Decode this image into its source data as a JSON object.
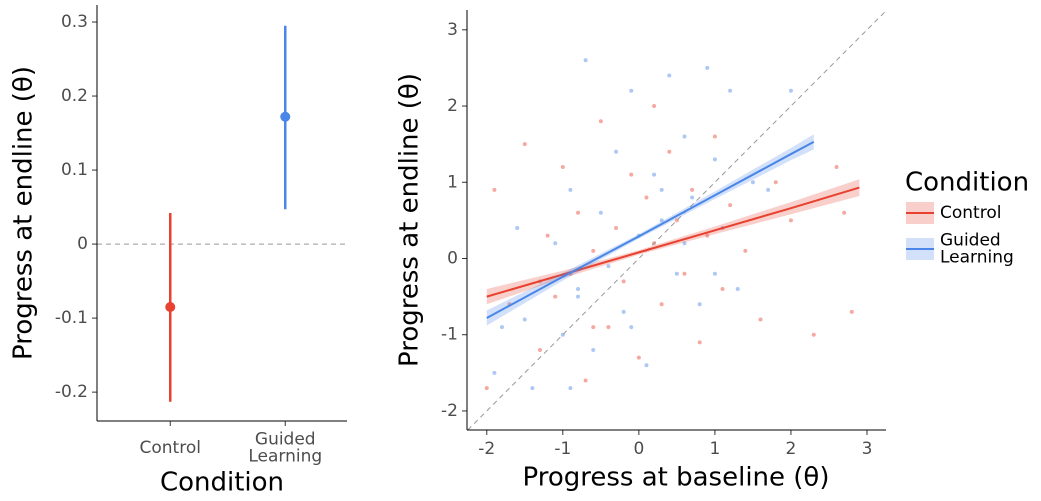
{
  "chart_data": [
    {
      "type": "pointrange",
      "xlabel": "Condition",
      "ylabel": "Progress at endline (θ)",
      "categories": [
        "Control",
        "Guided Learning"
      ],
      "values": [
        -0.085,
        0.172
      ],
      "lower": [
        -0.213,
        0.047
      ],
      "upper": [
        0.042,
        0.295
      ],
      "colors": [
        "#e8412f",
        "#4a86e8"
      ],
      "ylim": [
        -0.239,
        0.323
      ],
      "yticks": [
        -0.2,
        -0.1,
        0,
        0.1,
        0.2,
        0.3
      ],
      "hline": 0
    },
    {
      "type": "scatter",
      "xlabel": "Progress at baseline (θ)",
      "ylabel": "Progress at endline (θ)",
      "legend_title": "Condition",
      "legend": "right",
      "xlim": [
        -2.26,
        3.25
      ],
      "ylim": [
        -2.25,
        3.26
      ],
      "xticks": [
        -2,
        -1,
        0,
        1,
        2,
        3
      ],
      "yticks": [
        -2,
        -1,
        0,
        1,
        2,
        3
      ],
      "diagonal": true,
      "series": [
        {
          "name": "Control",
          "color": "#e8412f",
          "x": [
            -2,
            -1.9,
            -1.7,
            -1.5,
            -1.3,
            -1.2,
            -1.1,
            -1,
            -0.9,
            -0.8,
            -0.7,
            -0.6,
            -0.5,
            -0.4,
            -0.3,
            -0.2,
            -0.1,
            0,
            0.1,
            0.2,
            0.3,
            0.4,
            0.5,
            0.6,
            0.7,
            0.8,
            0.9,
            1,
            1.1,
            1.2,
            1.4,
            1.6,
            1.8,
            2,
            2.3,
            2.6,
            2.7,
            2.8,
            -0.6,
            0.2
          ],
          "values": [
            -1.7,
            0.9,
            -0.6,
            1.5,
            -1.2,
            0.3,
            -0.5,
            1.2,
            -0.2,
            0.6,
            -1.6,
            0.1,
            1.8,
            -0.9,
            0.4,
            -0.3,
            1.1,
            -1.3,
            0.8,
            0.2,
            -0.6,
            1.4,
            0.5,
            -0.2,
            0.9,
            -1.1,
            0.3,
            1.6,
            -0.4,
            0.7,
            0.1,
            -0.8,
            1.0,
            0.5,
            -1.0,
            1.2,
            0.6,
            -0.7,
            -0.9,
            2.0
          ],
          "fit": {
            "x": [
              -2,
              -1,
              0,
              1,
              2,
              2.9
            ],
            "values": [
              -0.5,
              -0.21,
              0.08,
              0.37,
              0.66,
              0.93
            ],
            "lower": [
              -0.6,
              -0.26,
              0.05,
              0.32,
              0.58,
              0.82
            ],
            "upper": [
              -0.4,
              -0.16,
              0.11,
              0.42,
              0.74,
              1.04
            ]
          }
        },
        {
          "name": "Guided Learning",
          "color": "#4a86e8",
          "x": [
            -1.9,
            -1.8,
            -1.6,
            -1.4,
            -1.3,
            -1.1,
            -1,
            -0.9,
            -0.8,
            -0.7,
            -0.6,
            -0.5,
            -0.4,
            -0.3,
            -0.2,
            -0.1,
            0,
            0.1,
            0.2,
            0.3,
            0.4,
            0.5,
            0.6,
            0.7,
            0.8,
            0.9,
            1,
            1.1,
            1.2,
            1.3,
            1.5,
            1.7,
            -0.8,
            -0.1,
            0.3,
            1.0,
            -1.5,
            0.6,
            -0.9,
            2.0
          ],
          "values": [
            -1.5,
            -0.9,
            0.4,
            -1.7,
            -0.3,
            0.2,
            -1.0,
            0.9,
            -0.5,
            2.6,
            -1.2,
            0.6,
            -0.1,
            1.4,
            -0.7,
            2.2,
            0.3,
            -1.4,
            1.1,
            0.5,
            2.4,
            -0.2,
            1.6,
            0.8,
            -0.6,
            2.5,
            1.3,
            0.4,
            2.2,
            -0.4,
            1.0,
            0.9,
            -0.4,
            -0.9,
            0.9,
            -0.2,
            -0.8,
            0.2,
            -1.7,
            2.2
          ],
          "fit": {
            "x": [
              -2,
              -1,
              0,
              1,
              2,
              2.3
            ],
            "values": [
              -0.78,
              -0.24,
              0.29,
              0.83,
              1.37,
              1.53
            ],
            "lower": [
              -0.88,
              -0.29,
              0.26,
              0.78,
              1.29,
              1.43
            ],
            "upper": [
              -0.68,
              -0.19,
              0.32,
              0.88,
              1.45,
              1.63
            ]
          }
        }
      ]
    }
  ]
}
